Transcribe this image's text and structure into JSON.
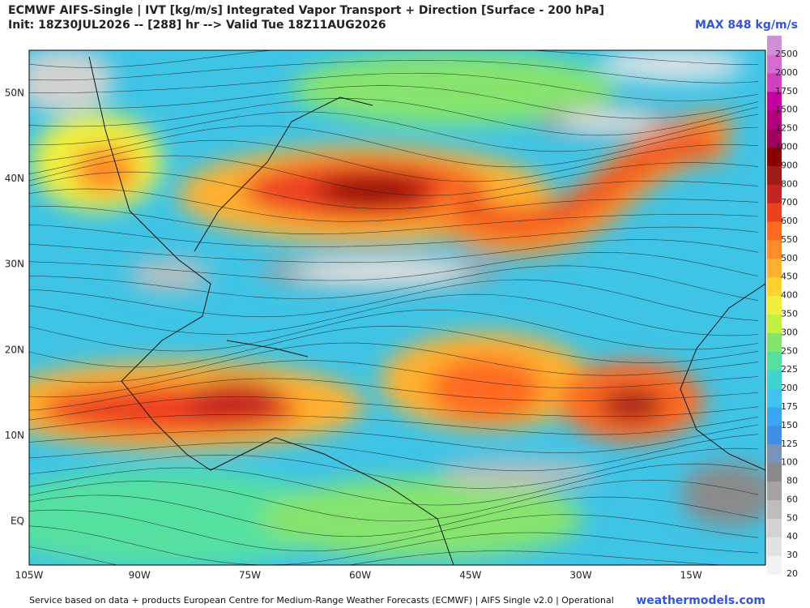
{
  "header": {
    "title": "ECMWF AIFS-Single | IVT [kg/m/s] Integrated Vapor Transport + Direction [Surface - 200 hPa]",
    "subtitle": "Init: 18Z30JUL2026 -- [288] hr --> Valid Tue 18Z11AUG2026",
    "max_label": "MAX 848 kg/m/s"
  },
  "map": {
    "lat_labels": [
      "50N",
      "40N",
      "30N",
      "20N",
      "10N",
      "EQ"
    ],
    "lon_labels": [
      "105W",
      "90W",
      "75W",
      "60W",
      "45W",
      "30W",
      "15W"
    ]
  },
  "colorbar": {
    "levels": [
      20,
      30,
      40,
      50,
      60,
      80,
      100,
      125,
      150,
      175,
      200,
      225,
      250,
      300,
      350,
      400,
      450,
      500,
      550,
      600,
      700,
      800,
      900,
      1000,
      1250,
      1500,
      1750,
      2000,
      2500
    ],
    "colors": [
      "#f2f2f2",
      "#e2e2e2",
      "#d2d2d2",
      "#bdbdbd",
      "#a3a3a3",
      "#8a8a8a",
      "#7a93b8",
      "#3f8fe6",
      "#3aa6f0",
      "#40c2ee",
      "#40d4d0",
      "#56e0a0",
      "#86e46e",
      "#c2f040",
      "#f0f03c",
      "#ffd22e",
      "#ffb02e",
      "#ff8c28",
      "#ff6a20",
      "#ee4020",
      "#c42424",
      "#a01a1a",
      "#8a0000",
      "#a0005e",
      "#b4007e",
      "#c400a0",
      "#d040c0",
      "#d46ed2",
      "#d090d8"
    ]
  },
  "footer": {
    "source": "Service based on data + products European Centre for Medium-Range Weather Forecasts (ECMWF) | AIFS Single v2.0 | Operational",
    "brand": "weathermodels.com"
  }
}
